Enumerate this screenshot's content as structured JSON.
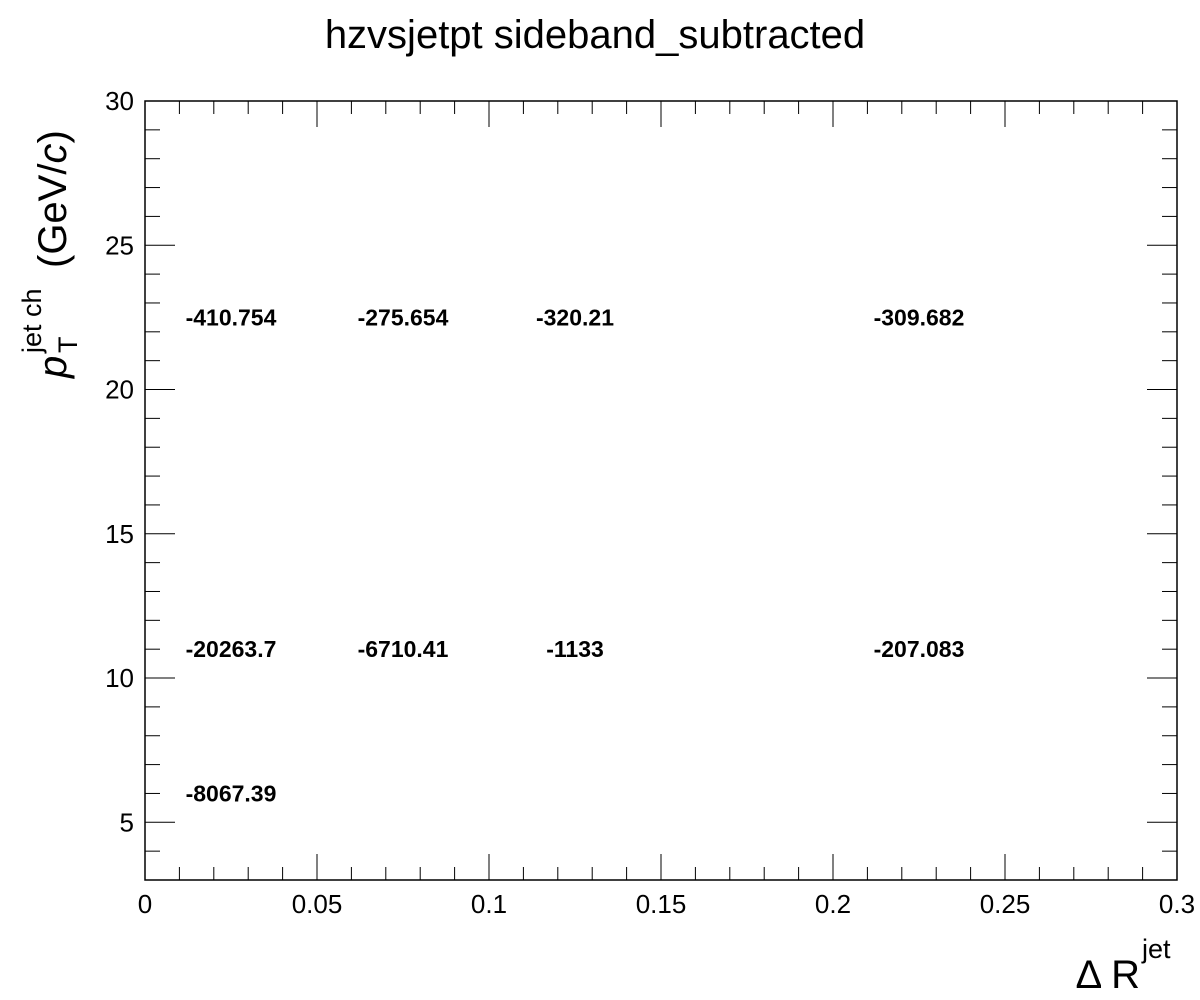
{
  "chart_data": {
    "type": "heatmap",
    "title": "hzvsjetpt sideband_subtracted",
    "xlabel": {
      "main": "Δ R",
      "sup": "jet"
    },
    "ylabel": {
      "main": "p",
      "sup": "jet ch",
      "sub": "T",
      "unit_open": "(GeV/",
      "unit_var": "c",
      "unit_close": ")"
    },
    "xlim": [
      0,
      0.3
    ],
    "ylim": [
      3,
      30
    ],
    "x_ticks": [
      "0",
      "0.05",
      "0.1",
      "0.15",
      "0.2",
      "0.25",
      "0.3"
    ],
    "x_tick_values": [
      0,
      0.05,
      0.1,
      0.15,
      0.2,
      0.25,
      0.3
    ],
    "y_ticks": [
      "5",
      "10",
      "15",
      "20",
      "25",
      "30"
    ],
    "y_tick_values": [
      5,
      10,
      15,
      20,
      25,
      30
    ],
    "cells": [
      {
        "x": 0.025,
        "y": 22.5,
        "label": "-410.754"
      },
      {
        "x": 0.075,
        "y": 22.5,
        "label": "-275.654"
      },
      {
        "x": 0.125,
        "y": 22.5,
        "label": "-320.21"
      },
      {
        "x": 0.225,
        "y": 22.5,
        "label": "-309.682"
      },
      {
        "x": 0.025,
        "y": 11,
        "label": "-20263.7"
      },
      {
        "x": 0.075,
        "y": 11,
        "label": "-6710.41"
      },
      {
        "x": 0.125,
        "y": 11,
        "label": "-1133"
      },
      {
        "x": 0.225,
        "y": 11,
        "label": "-207.083"
      },
      {
        "x": 0.025,
        "y": 6,
        "label": "-8067.39"
      }
    ],
    "grid": false,
    "legend": "none"
  }
}
